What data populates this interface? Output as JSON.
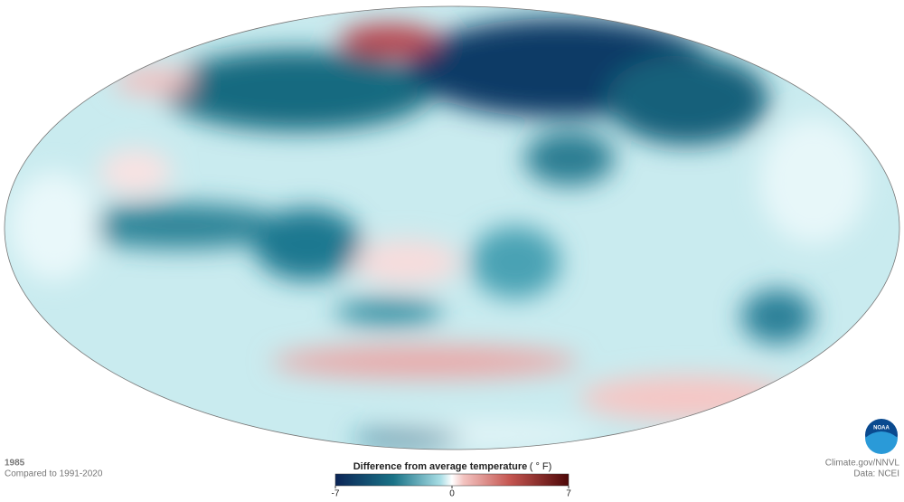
{
  "header": {
    "year": "1985",
    "baseline": "Compared to 1991-2020"
  },
  "legend": {
    "title": "Difference from average temperature",
    "unit": "( ° F)",
    "min": -7,
    "max": 7,
    "ticks": [
      -7,
      0,
      7
    ]
  },
  "credits": {
    "source": "Climate.gov/NNVL",
    "data": "Data: NCEI",
    "logo": "NOAA"
  }
}
